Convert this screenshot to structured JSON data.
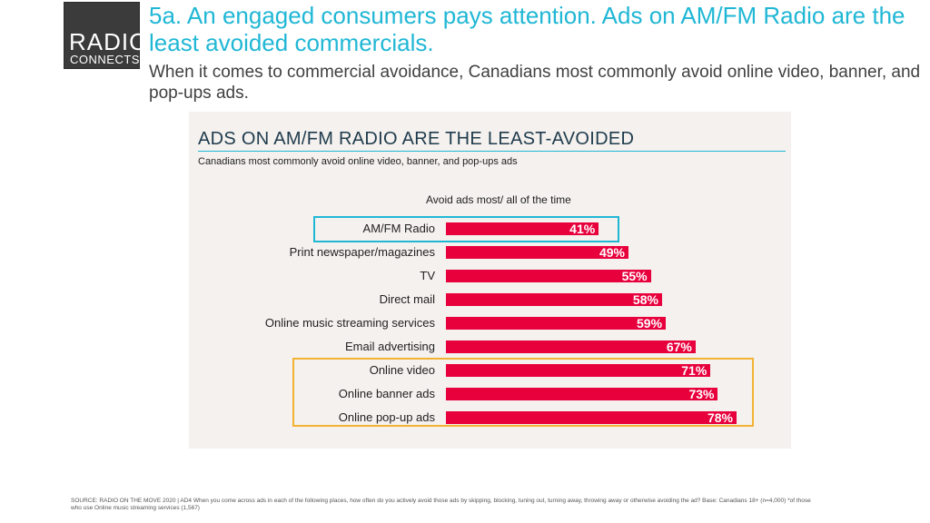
{
  "header": {
    "logo_line1": "RADIO",
    "logo_line2": "CONNECTS",
    "title": "5a. An engaged consumers pays attention.  Ads on AM/FM Radio are the least avoided commercials.",
    "subtitle": "When it comes to commercial avoidance, Canadians most commonly avoid online video, banner, and pop-ups ads."
  },
  "colors": {
    "accent": "#20b7d5",
    "bar": "#e8003d",
    "highlight_gold": "#f2b233",
    "panel_bg": "#f4f1ee"
  },
  "chart_data": {
    "type": "bar",
    "orientation": "horizontal",
    "title": "ADS ON AM/FM RADIO ARE THE LEAST-AVOIDED",
    "subtitle": "Canadians most commonly avoid online video, banner, and pop-ups ads",
    "ylabel": "Avoid ads most/ all of the time",
    "categories": [
      "AM/FM Radio",
      "Print newspaper/magazines",
      "TV",
      "Direct mail",
      "Online music streaming services",
      "Email advertising",
      "Online video",
      "Online banner ads",
      "Online pop-up ads"
    ],
    "values": [
      41,
      49,
      55,
      58,
      59,
      67,
      71,
      73,
      78
    ],
    "value_labels": [
      "41%",
      "49%",
      "55%",
      "58%",
      "59%",
      "67%",
      "71%",
      "73%",
      "78%"
    ],
    "highlighted": {
      "teal": [
        "AM/FM Radio"
      ],
      "gold": [
        "Online video",
        "Online banner ads",
        "Online pop-up ads"
      ]
    },
    "grid": false
  },
  "footer": {
    "source": "SOURCE: RADIO ON THE MOVE 2020  | AD4  When you come across ads in each of the following places, how often do you actively avoid those ads by skipping, blocking, tuning out, turning away, throwing away or otherwise avoiding the ad?  Base:  Canadians 18+ (n=4,000)  *of those who use Online music streaming services (1,567)"
  }
}
